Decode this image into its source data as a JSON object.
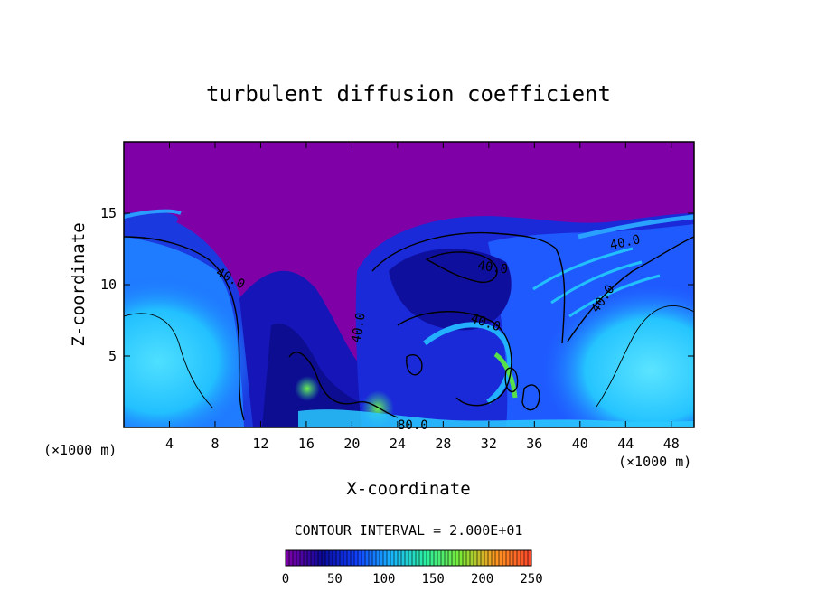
{
  "chart_data": {
    "type": "heatmap",
    "title": "turbulent diffusion coefficient",
    "xlabel": "X-coordinate",
    "ylabel": "Z-coordinate",
    "x_unit": "(×1000 m)",
    "x_unit_right": "(×1000 m)",
    "xlim": [
      0,
      50
    ],
    "ylim": [
      0,
      20
    ],
    "x_ticks": [
      4,
      8,
      12,
      16,
      20,
      24,
      28,
      32,
      36,
      40,
      44,
      48
    ],
    "y_ticks": [
      5,
      10,
      15
    ],
    "contour_interval_text": "CONTOUR INTERVAL = 2.000E+01",
    "contour_labels": [
      "40.0",
      "40.0",
      "40.0",
      "40.0",
      "40.0",
      "40.0",
      "80.0"
    ],
    "colorbar": {
      "min": 0,
      "max": 250,
      "ticks": [
        0,
        50,
        100,
        150,
        200,
        250
      ],
      "colors": [
        "#7b00a8",
        "#0a0a9a",
        "#1040ff",
        "#19b4ff",
        "#2bf0a0",
        "#7bea36",
        "#ff9a20",
        "#ff4a2a"
      ]
    },
    "field_colors": {
      "background": "#8000a8",
      "deep_blue": "#1a1ad6",
      "mid_blue": "#1f6cff",
      "cyan": "#22c8ff",
      "green": "#3ad97a",
      "lime": "#64e23a"
    }
  }
}
